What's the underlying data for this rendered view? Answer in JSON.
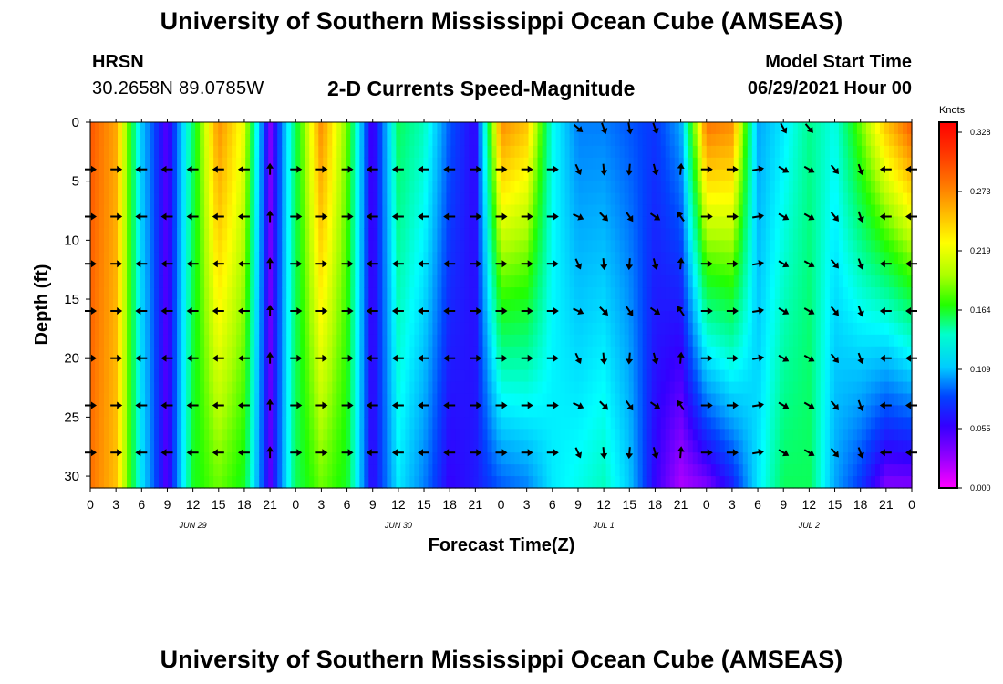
{
  "header": {
    "title": "University of Southern Mississippi Ocean Cube (AMSEAS)",
    "station": "HRSN",
    "coordinates": "30.2658N  89.0785W",
    "subtitle": "2-D Currents Speed-Magnitude",
    "model_start_label": "Model Start Time",
    "model_start_value": "06/29/2021 Hour 00"
  },
  "footer": {
    "title": "University of Southern Mississippi Ocean Cube (AMSEAS)"
  },
  "colors": {
    "scale": [
      "#ff00ff",
      "#9900ff",
      "#3300ff",
      "#0044ff",
      "#00aaff",
      "#00ffff",
      "#00ff88",
      "#22ff00",
      "#aaff00",
      "#ffff00",
      "#ffbb00",
      "#ff7700",
      "#ff3300",
      "#ff0000"
    ],
    "arrow": "#000000"
  },
  "chart_data": {
    "type": "heatmap",
    "title": "2-D Currents Speed-Magnitude",
    "xlabel": "Forecast Time(Z)",
    "ylabel": "Depth (ft)",
    "x_range_hours": [
      0,
      96
    ],
    "ylim": [
      0,
      31
    ],
    "x_ticks": [
      "0",
      "3",
      "6",
      "9",
      "12",
      "15",
      "18",
      "21",
      "0",
      "3",
      "6",
      "9",
      "12",
      "15",
      "18",
      "21",
      "0",
      "3",
      "6",
      "9",
      "12",
      "15",
      "18",
      "21",
      "0",
      "3",
      "6",
      "9",
      "12",
      "15",
      "18",
      "21",
      "0"
    ],
    "date_labels": [
      {
        "label": "JUN 29",
        "hour": 12
      },
      {
        "label": "JUN 30",
        "hour": 36
      },
      {
        "label": "JUL 1",
        "hour": 60
      },
      {
        "label": "JUL 2",
        "hour": 84
      }
    ],
    "y_ticks": [
      0,
      5,
      10,
      15,
      20,
      25,
      30
    ],
    "colorbar": {
      "unit": "Knots",
      "min": 0.0,
      "max": 0.328,
      "ticks": [
        "0.328",
        "0.273",
        "0.219",
        "0.164",
        "0.109",
        "0.055",
        "0.000"
      ]
    },
    "column_speeds_knots": [
      {
        "hour": 0,
        "surface": 0.29,
        "bottom": 0.28
      },
      {
        "hour": 3,
        "surface": 0.26,
        "bottom": 0.25
      },
      {
        "hour": 6,
        "surface": 0.11,
        "bottom": 0.12
      },
      {
        "hour": 9,
        "surface": 0.04,
        "bottom": 0.04
      },
      {
        "hour": 12,
        "surface": 0.16,
        "bottom": 0.17
      },
      {
        "hour": 15,
        "surface": 0.27,
        "bottom": 0.19
      },
      {
        "hour": 18,
        "surface": 0.22,
        "bottom": 0.17
      },
      {
        "hour": 21,
        "surface": 0.03,
        "bottom": 0.04
      },
      {
        "hour": 24,
        "surface": 0.16,
        "bottom": 0.16
      },
      {
        "hour": 27,
        "surface": 0.27,
        "bottom": 0.19
      },
      {
        "hour": 30,
        "surface": 0.19,
        "bottom": 0.17
      },
      {
        "hour": 33,
        "surface": 0.04,
        "bottom": 0.05
      },
      {
        "hour": 36,
        "surface": 0.16,
        "bottom": 0.12
      },
      {
        "hour": 39,
        "surface": 0.14,
        "bottom": 0.09
      },
      {
        "hour": 42,
        "surface": 0.08,
        "bottom": 0.05
      },
      {
        "hour": 45,
        "surface": 0.05,
        "bottom": 0.06
      },
      {
        "hour": 48,
        "surface": 0.27,
        "bottom": 0.08
      },
      {
        "hour": 51,
        "surface": 0.25,
        "bottom": 0.09
      },
      {
        "hour": 54,
        "surface": 0.13,
        "bottom": 0.12
      },
      {
        "hour": 57,
        "surface": 0.09,
        "bottom": 0.13
      },
      {
        "hour": 60,
        "surface": 0.09,
        "bottom": 0.14
      },
      {
        "hour": 63,
        "surface": 0.08,
        "bottom": 0.11
      },
      {
        "hour": 66,
        "surface": 0.07,
        "bottom": 0.05
      },
      {
        "hour": 69,
        "surface": 0.1,
        "bottom": 0.02
      },
      {
        "hour": 72,
        "surface": 0.28,
        "bottom": 0.03
      },
      {
        "hour": 75,
        "surface": 0.27,
        "bottom": 0.06
      },
      {
        "hour": 78,
        "surface": 0.1,
        "bottom": 0.12
      },
      {
        "hour": 81,
        "surface": 0.12,
        "bottom": 0.16
      },
      {
        "hour": 84,
        "surface": 0.15,
        "bottom": 0.16
      },
      {
        "hour": 87,
        "surface": 0.13,
        "bottom": 0.1
      },
      {
        "hour": 90,
        "surface": 0.19,
        "bottom": 0.07
      },
      {
        "hour": 93,
        "surface": 0.25,
        "bottom": 0.03
      },
      {
        "hour": 96,
        "surface": 0.29,
        "bottom": 0.03
      }
    ],
    "vector_depths_ft": [
      4,
      8,
      12,
      16,
      20,
      24,
      28
    ],
    "vector_hours": [
      0,
      3,
      6,
      9,
      12,
      15,
      18,
      21,
      24,
      27,
      30,
      33,
      36,
      39,
      42,
      45,
      48,
      51,
      54,
      57,
      60,
      63,
      66,
      69,
      72,
      75,
      78,
      81,
      84,
      87,
      90,
      93,
      96
    ],
    "vector_direction_deg_by_hour": [
      90,
      90,
      270,
      270,
      270,
      270,
      270,
      0,
      90,
      90,
      90,
      270,
      270,
      270,
      270,
      90,
      90,
      90,
      90,
      140,
      160,
      170,
      150,
      350,
      90,
      90,
      80,
      120,
      120,
      140,
      160,
      270,
      270
    ],
    "surface_vectors": [
      {
        "hour": 57,
        "direction_deg": 130
      },
      {
        "hour": 60,
        "direction_deg": 160
      },
      {
        "hour": 63,
        "direction_deg": 170
      },
      {
        "hour": 66,
        "direction_deg": 160
      },
      {
        "hour": 81,
        "direction_deg": 150
      },
      {
        "hour": 84,
        "direction_deg": 140
      }
    ]
  }
}
